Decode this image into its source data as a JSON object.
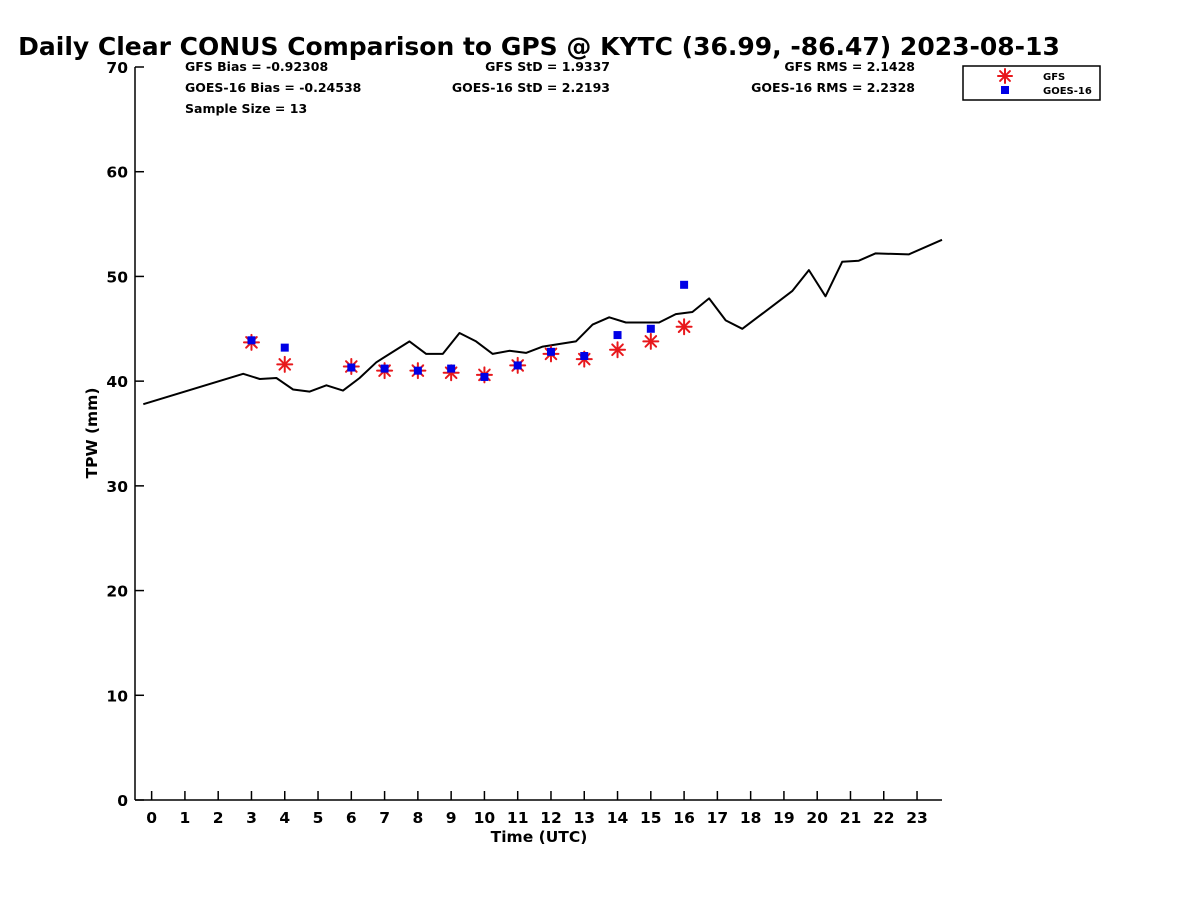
{
  "chart_data": {
    "type": "line",
    "title": "Daily Clear CONUS Comparison to GPS @ KYTC (36.99, -86.47) 2023-08-13",
    "xlabel": "Time (UTC)",
    "ylabel": "TPW (mm)",
    "xlim": [
      -0.5,
      23.75
    ],
    "ylim": [
      0,
      70
    ],
    "xticks": [
      "0",
      "1",
      "2",
      "3",
      "4",
      "5",
      "6",
      "7",
      "8",
      "9",
      "10",
      "11",
      "12",
      "13",
      "14",
      "15",
      "16",
      "17",
      "18",
      "19",
      "20",
      "21",
      "22",
      "23"
    ],
    "yticks": [
      "0",
      "10",
      "20",
      "30",
      "40",
      "50",
      "60",
      "70"
    ],
    "grid": false,
    "legend_position": "top-right",
    "stats": {
      "gfs_bias": "GFS Bias = -0.92308",
      "goes_bias": "GOES-16 Bias = -0.24538",
      "sample_size": "Sample Size = 13",
      "gfs_std": "GFS StD = 1.9337",
      "goes_std": "GOES-16 StD = 2.2193",
      "gfs_rms": "GFS RMS = 2.1428",
      "goes_rms": "GOES-16 RMS = 2.2328"
    },
    "series": [
      {
        "kind": "line",
        "color": "#000000",
        "x": [
          -0.25,
          2.75,
          3.25,
          3.75,
          4.25,
          4.75,
          5.25,
          5.75,
          6.25,
          6.75,
          7.75,
          8.25,
          8.75,
          9.25,
          9.75,
          10.25,
          10.75,
          11.25,
          11.75,
          12.75,
          13.25,
          13.75,
          14.25,
          14.75,
          15.25,
          15.75,
          16.25,
          16.75,
          17.25,
          17.75,
          18.25,
          18.75,
          19.25,
          19.75,
          20.25,
          20.75,
          21.25,
          21.75,
          22.75,
          23.75
        ],
        "y": [
          37.8,
          40.7,
          40.2,
          40.3,
          39.2,
          39.0,
          39.6,
          39.1,
          40.3,
          41.8,
          43.8,
          42.6,
          42.6,
          44.6,
          43.8,
          42.6,
          42.9,
          42.7,
          43.3,
          43.8,
          45.4,
          46.1,
          45.6,
          45.6,
          45.6,
          46.4,
          46.6,
          47.9,
          45.8,
          45.0,
          46.2,
          47.4,
          48.6,
          50.6,
          48.1,
          51.4,
          51.5,
          52.2,
          52.1,
          53.5
        ]
      },
      {
        "name": "GFS",
        "kind": "scatter",
        "marker": "asterisk",
        "color": "#e8181c",
        "x": [
          3,
          4,
          6,
          7,
          8,
          9,
          10,
          11,
          12,
          13,
          14,
          15,
          16
        ],
        "y": [
          43.7,
          41.6,
          41.4,
          41.0,
          41.0,
          40.8,
          40.6,
          41.5,
          42.6,
          42.1,
          43.0,
          43.8,
          45.2
        ]
      },
      {
        "name": "GOES-16",
        "kind": "scatter",
        "marker": "square",
        "color": "#0000e6",
        "x": [
          3,
          4,
          6,
          7,
          8,
          9,
          10,
          11,
          12,
          13,
          14,
          15,
          16
        ],
        "y": [
          43.9,
          43.2,
          41.3,
          41.2,
          41.0,
          41.2,
          40.4,
          41.5,
          42.8,
          42.4,
          44.4,
          45.0,
          49.2
        ]
      }
    ]
  }
}
